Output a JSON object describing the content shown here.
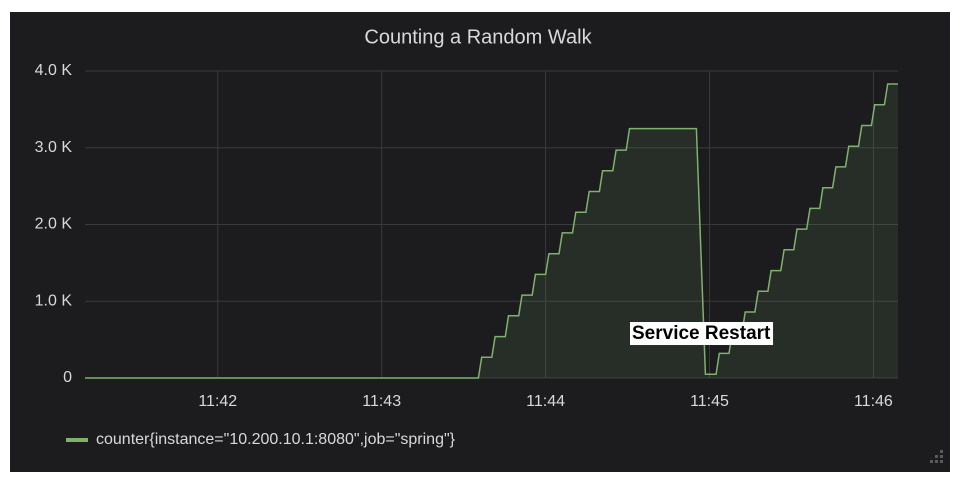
{
  "chart_data": {
    "type": "line",
    "title": "Counting a Random Walk",
    "annotation": "Service Restart",
    "x": [
      41.19,
      43.59,
      43.61,
      43.672,
      43.692,
      43.754,
      43.774,
      43.836,
      43.856,
      43.918,
      43.938,
      44.0,
      44.02,
      44.082,
      44.102,
      44.164,
      44.184,
      44.246,
      44.266,
      44.328,
      44.348,
      44.41,
      44.43,
      44.492,
      44.512,
      44.92,
      44.975,
      45.04,
      45.06,
      45.119,
      45.139,
      45.198,
      45.218,
      45.277,
      45.297,
      45.356,
      45.376,
      45.435,
      45.455,
      45.514,
      45.534,
      45.593,
      45.613,
      45.672,
      45.692,
      45.751,
      45.771,
      45.83,
      45.85,
      45.909,
      45.929,
      45.988,
      46.008,
      46.067,
      46.087,
      46.15
    ],
    "series": [
      {
        "name": "counter{instance=\"10.200.10.1:8080\",job=\"spring\"}",
        "color": "#7eb26d",
        "values": [
          0,
          0,
          270,
          270,
          540,
          540,
          810,
          810,
          1080,
          1080,
          1350,
          1350,
          1620,
          1620,
          1890,
          1890,
          2160,
          2160,
          2430,
          2430,
          2700,
          2700,
          2970,
          2970,
          3250,
          3250,
          50,
          50,
          320,
          320,
          590,
          590,
          860,
          860,
          1130,
          1130,
          1400,
          1400,
          1670,
          1670,
          1940,
          1940,
          2210,
          2210,
          2480,
          2480,
          2750,
          2750,
          3020,
          3020,
          3290,
          3290,
          3560,
          3560,
          3830,
          3830
        ]
      }
    ],
    "xlim": [
      41.19,
      46.15
    ],
    "xticks": [
      {
        "value": 42,
        "label": "11:42"
      },
      {
        "value": 43,
        "label": "11:43"
      },
      {
        "value": 44,
        "label": "11:44"
      },
      {
        "value": 45,
        "label": "11:45"
      },
      {
        "value": 46,
        "label": "11:46"
      }
    ],
    "ylim": [
      0,
      4000
    ],
    "yticks": [
      0,
      {
        "value": 1000,
        "label": "1.0 K"
      },
      {
        "value": 2000,
        "label": "2.0 K"
      },
      {
        "value": 3000,
        "label": "3.0 K"
      },
      {
        "value": 4000,
        "label": "4.0 K"
      }
    ],
    "grid": true,
    "fill": true
  }
}
